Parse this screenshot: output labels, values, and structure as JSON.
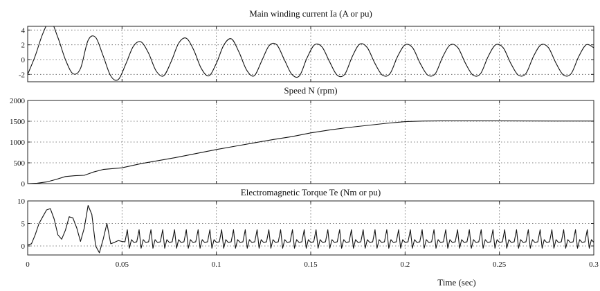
{
  "chart_data": [
    {
      "type": "line",
      "title": "Main winding current Ia (A or pu)",
      "ylim": [
        -3,
        4.5
      ],
      "yticks": [
        -2,
        0,
        2,
        4
      ],
      "ytick_labels": [
        "-2",
        "0",
        "2",
        "4"
      ],
      "grid": true,
      "series": [
        {
          "x": [
            0,
            0.004,
            0.008,
            0.012,
            0.016,
            0.02,
            0.024,
            0.028,
            0.032,
            0.036,
            0.04,
            0.044,
            0.048,
            0.052,
            0.056,
            0.06,
            0.064,
            0.068,
            0.072,
            0.076,
            0.08,
            0.084,
            0.088,
            0.092,
            0.096,
            0.1,
            0.104,
            0.108,
            0.112,
            0.116,
            0.12,
            0.124,
            0.128,
            0.132,
            0.136,
            0.14,
            0.144,
            0.148,
            0.152,
            0.156,
            0.16,
            0.164,
            0.168,
            0.172,
            0.176,
            0.18,
            0.184,
            0.188,
            0.192,
            0.196,
            0.2,
            0.204,
            0.208,
            0.212,
            0.216,
            0.22,
            0.224,
            0.228,
            0.232,
            0.236,
            0.24,
            0.244,
            0.248,
            0.252,
            0.256,
            0.26,
            0.264,
            0.268,
            0.272,
            0.276,
            0.28,
            0.284,
            0.288,
            0.292,
            0.296,
            0.3
          ],
          "y": [
            -2.0,
            0.5,
            3.5,
            5.2,
            3.0,
            0.0,
            -1.9,
            -1.2,
            2.6,
            3.0,
            0.5,
            -2.2,
            -2.7,
            -0.6,
            1.8,
            2.4,
            0.9,
            -1.5,
            -2.2,
            -0.3,
            2.2,
            2.9,
            1.3,
            -1.2,
            -2.2,
            -0.5,
            2.0,
            2.8,
            1.0,
            -1.4,
            -2.2,
            -0.2,
            1.9,
            2.0,
            0.0,
            -2.0,
            -2.2,
            0.2,
            2.0,
            1.7,
            -0.3,
            -2.1,
            -2.0,
            0.4,
            2.1,
            1.6,
            -0.5,
            -2.1,
            -1.9,
            0.4,
            2.0,
            1.6,
            -0.5,
            -2.1,
            -1.9,
            0.4,
            2.0,
            1.6,
            -0.5,
            -2.1,
            -1.9,
            0.4,
            2.0,
            1.6,
            -0.5,
            -2.1,
            -1.9,
            0.4,
            2.0,
            1.6,
            -0.5,
            -2.1,
            -1.9,
            0.4,
            2.0,
            1.6
          ]
        }
      ]
    },
    {
      "type": "line",
      "title": "Speed N (rpm)",
      "ylim": [
        0,
        2000
      ],
      "yticks": [
        0,
        500,
        1000,
        1500,
        2000
      ],
      "ytick_labels": [
        "0",
        "500",
        "1000",
        "1500",
        "2000"
      ],
      "grid": true,
      "series": [
        {
          "x": [
            0,
            0.005,
            0.01,
            0.015,
            0.02,
            0.025,
            0.03,
            0.035,
            0.04,
            0.05,
            0.06,
            0.07,
            0.08,
            0.09,
            0.1,
            0.11,
            0.12,
            0.13,
            0.14,
            0.15,
            0.16,
            0.17,
            0.18,
            0.19,
            0.2,
            0.21,
            0.22,
            0.25,
            0.28,
            0.3
          ],
          "y": [
            0,
            10,
            40,
            100,
            170,
            190,
            200,
            280,
            340,
            380,
            480,
            560,
            640,
            730,
            820,
            900,
            980,
            1060,
            1130,
            1220,
            1290,
            1350,
            1400,
            1450,
            1490,
            1505,
            1510,
            1510,
            1505,
            1505
          ]
        }
      ]
    },
    {
      "type": "line",
      "title": "Electromagnetic Torque Te (Nm or pu)",
      "ylim": [
        -2,
        10
      ],
      "yticks": [
        0,
        5,
        10
      ],
      "ytick_labels": [
        "0",
        "5",
        "10"
      ],
      "xlim": [
        0,
        0.3
      ],
      "xticks": [
        0,
        0.05,
        0.1,
        0.15,
        0.2,
        0.25,
        0.3
      ],
      "xtick_labels": [
        "0",
        "0.05",
        "0.1",
        "0.15",
        "0.2",
        "0.25",
        "0.3"
      ],
      "xlabel": "Time (sec)",
      "grid": true,
      "series": [
        {
          "x": [
            0,
            0.002,
            0.004,
            0.006,
            0.008,
            0.01,
            0.012,
            0.014,
            0.016,
            0.018,
            0.02,
            0.022,
            0.024,
            0.026,
            0.028,
            0.03,
            0.032,
            0.034,
            0.036,
            0.038,
            0.04,
            0.042,
            0.044,
            0.046,
            0.048,
            0.05
          ],
          "y": [
            0.2,
            0.5,
            2.5,
            5.0,
            6.5,
            8.0,
            8.3,
            6.0,
            2.5,
            1.5,
            3.5,
            6.5,
            6.2,
            4.0,
            1.0,
            4.0,
            9.0,
            7.0,
            0.0,
            -1.5,
            1.5,
            5.0,
            0.5,
            0.8,
            1.2,
            1.0
          ]
        }
      ],
      "steady_ripple": {
        "x_start": 0.05,
        "period": 0.00625,
        "base": 0.8,
        "peak": 3.6,
        "dip": -0.5
      }
    }
  ],
  "x_axis_title": "Time (sec)"
}
